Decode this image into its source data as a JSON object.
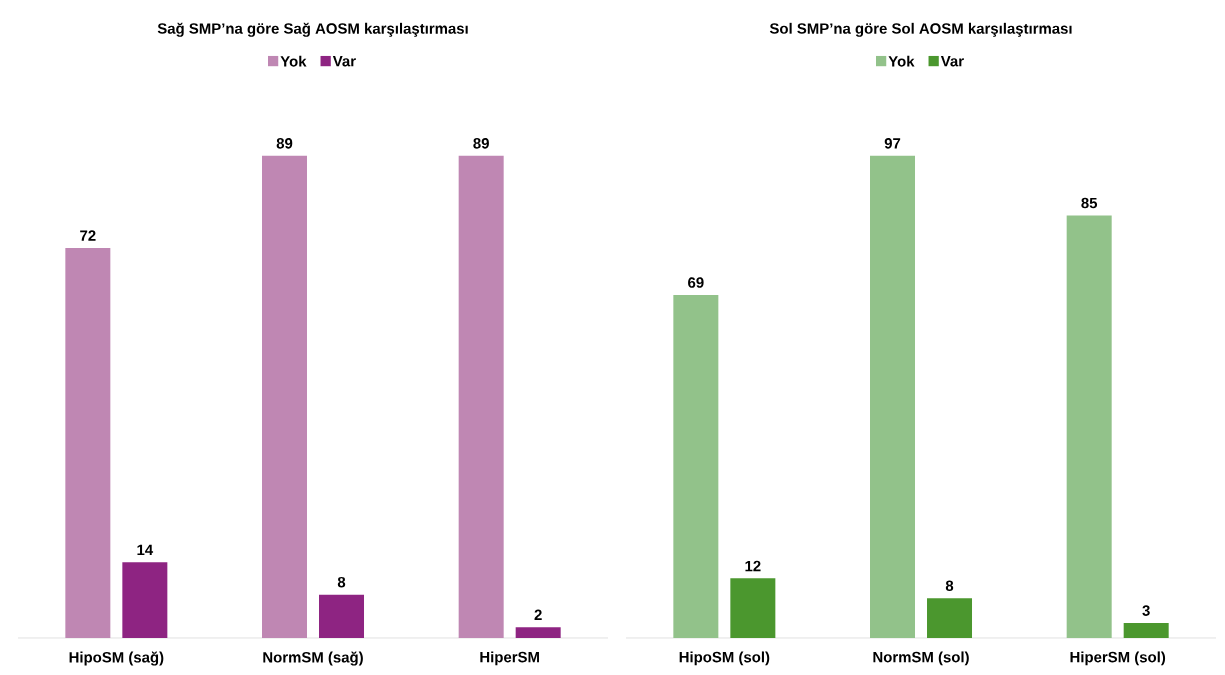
{
  "chart_data": [
    {
      "type": "bar",
      "title": "Sağ SMP’na göre Sağ AOSM karşılaştırması",
      "categories": [
        "HipoSM (sağ)",
        "NormSM (sağ)",
        "HiperSM"
      ],
      "series": [
        {
          "name": "Yok",
          "color": "#bf87b3",
          "values": [
            72,
            89,
            89
          ]
        },
        {
          "name": "Var",
          "color": "#8e2482",
          "values": [
            14,
            8,
            2
          ]
        }
      ],
      "data_labels": true,
      "legend": "top"
    },
    {
      "type": "bar",
      "title": "Sol SMP’na göre Sol AOSM karşılaştırması",
      "categories": [
        "HipoSM (sol)",
        "NormSM (sol)",
        "HiperSM (sol)"
      ],
      "series": [
        {
          "name": "Yok",
          "color": "#92c28a",
          "values": [
            69,
            97,
            85
          ]
        },
        {
          "name": "Var",
          "color": "#4b972e",
          "values": [
            12,
            8,
            3
          ]
        }
      ],
      "data_labels": true,
      "legend": "top"
    }
  ]
}
